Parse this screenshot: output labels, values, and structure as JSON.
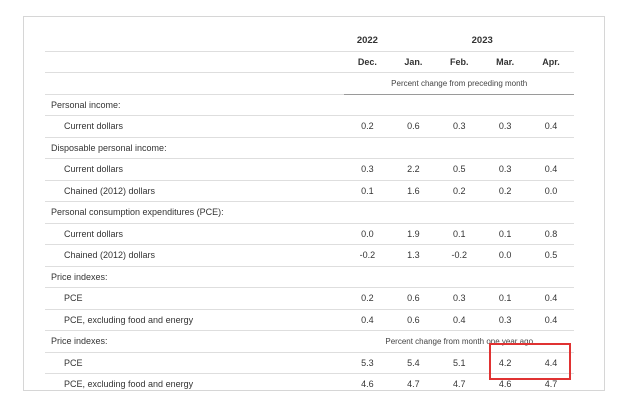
{
  "header": {
    "year_2022": "2022",
    "year_2023": "2023",
    "months": [
      "Dec.",
      "Jan.",
      "Feb.",
      "Mar.",
      "Apr."
    ],
    "unit_monthly": "Percent change from preceding month"
  },
  "rows": [
    {
      "label": "Personal income:",
      "values": []
    },
    {
      "label": "Current dollars",
      "values": [
        "0.2",
        "0.6",
        "0.3",
        "0.3",
        "0.4"
      ]
    },
    {
      "label": "Disposable personal income:",
      "values": []
    },
    {
      "label": "Current dollars",
      "values": [
        "0.3",
        "2.2",
        "0.5",
        "0.3",
        "0.4"
      ]
    },
    {
      "label": "Chained (2012) dollars",
      "values": [
        "0.1",
        "1.6",
        "0.2",
        "0.2",
        "0.0"
      ]
    },
    {
      "label": "Personal consumption expenditures (PCE):",
      "values": []
    },
    {
      "label": "Current dollars",
      "values": [
        "0.0",
        "1.9",
        "0.1",
        "0.1",
        "0.8"
      ]
    },
    {
      "label": "Chained (2012) dollars",
      "values": [
        "-0.2",
        "1.3",
        "-0.2",
        "0.0",
        "0.5"
      ]
    },
    {
      "label": "Price indexes:",
      "values": []
    },
    {
      "label": "PCE",
      "values": [
        "0.2",
        "0.6",
        "0.3",
        "0.1",
        "0.4"
      ]
    },
    {
      "label": "PCE, excluding food and energy",
      "values": [
        "0.4",
        "0.6",
        "0.4",
        "0.3",
        "0.4"
      ]
    },
    {
      "label": "Price indexes:",
      "unit": "Percent change from month one year ago",
      "values": []
    },
    {
      "label": "PCE",
      "values": [
        "5.3",
        "5.4",
        "5.1",
        "4.2",
        "4.4"
      ]
    },
    {
      "label": "PCE, excluding food and energy",
      "values": [
        "4.6",
        "4.7",
        "4.7",
        "4.6",
        "4.7"
      ]
    }
  ],
  "highlight": {
    "color": "#e03232",
    "covers": "Mar. and Apr. values of the year-over-year price index rows"
  }
}
